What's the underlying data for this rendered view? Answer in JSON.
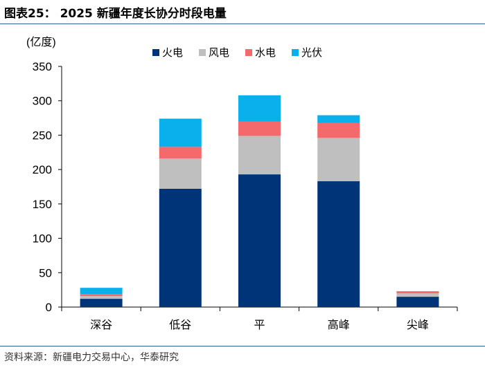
{
  "figure_title": "图表25：  2025 新疆年度长协分时段电量",
  "source": "资料来源：新疆电力交易中心，华泰研究",
  "colors": {
    "火电": "#003478",
    "风电": "#bfbfbf",
    "水电": "#f4696b",
    "光伏": "#0ab0ec",
    "rule": "#2f5d97"
  },
  "chart_data": {
    "type": "bar",
    "stacked": true,
    "title": "",
    "ylabel": "(亿度)",
    "xlabel": "",
    "ylim": [
      0,
      350
    ],
    "yticks": [
      0,
      50,
      100,
      150,
      200,
      250,
      300,
      350
    ],
    "categories": [
      "深谷",
      "低谷",
      "平",
      "高峰",
      "尖峰"
    ],
    "legend_position": "top",
    "series": [
      {
        "name": "火电",
        "values": [
          12,
          172,
          193,
          183,
          15
        ]
      },
      {
        "name": "风电",
        "values": [
          4,
          44,
          56,
          63,
          5
        ]
      },
      {
        "name": "水电",
        "values": [
          3,
          17,
          21,
          22,
          3
        ]
      },
      {
        "name": "光伏",
        "values": [
          9,
          41,
          38,
          11,
          0
        ]
      }
    ]
  }
}
